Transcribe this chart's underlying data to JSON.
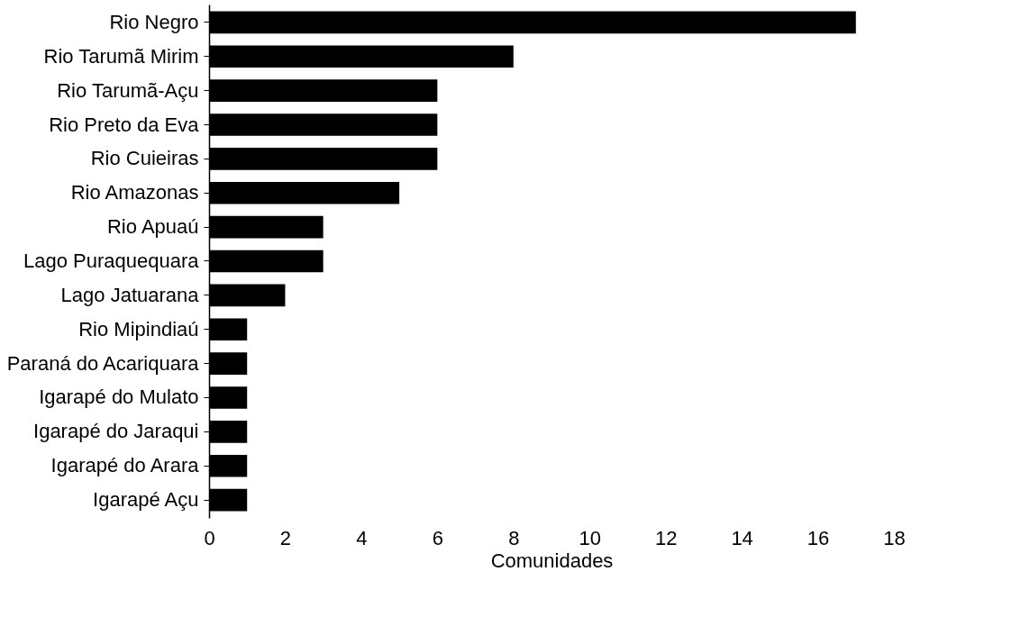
{
  "chart_data": {
    "type": "bar",
    "orientation": "horizontal",
    "xlabel": "Comunidades",
    "categories": [
      "Rio Negro",
      "Rio Tarumã Mirim",
      "Rio Tarumã-Açu",
      "Rio Preto da Eva",
      "Rio Cuieiras",
      "Rio Amazonas",
      "Rio Apuaú",
      "Lago Puraquequara",
      "Lago Jatuarana",
      "Rio Mipindiaú",
      "Paraná do Acariquara",
      "Igarapé do Mulato",
      "Igarapé do Jaraqui",
      "Igarapé do Arara",
      "Igarapé Açu"
    ],
    "values": [
      17,
      8,
      6,
      6,
      6,
      5,
      3,
      3,
      2,
      1,
      1,
      1,
      1,
      1,
      1
    ],
    "color": "#000000",
    "xlim": [
      0,
      18
    ],
    "xticks": [
      0,
      2,
      4,
      6,
      8,
      10,
      12,
      14,
      16,
      18
    ],
    "grid": false
  }
}
